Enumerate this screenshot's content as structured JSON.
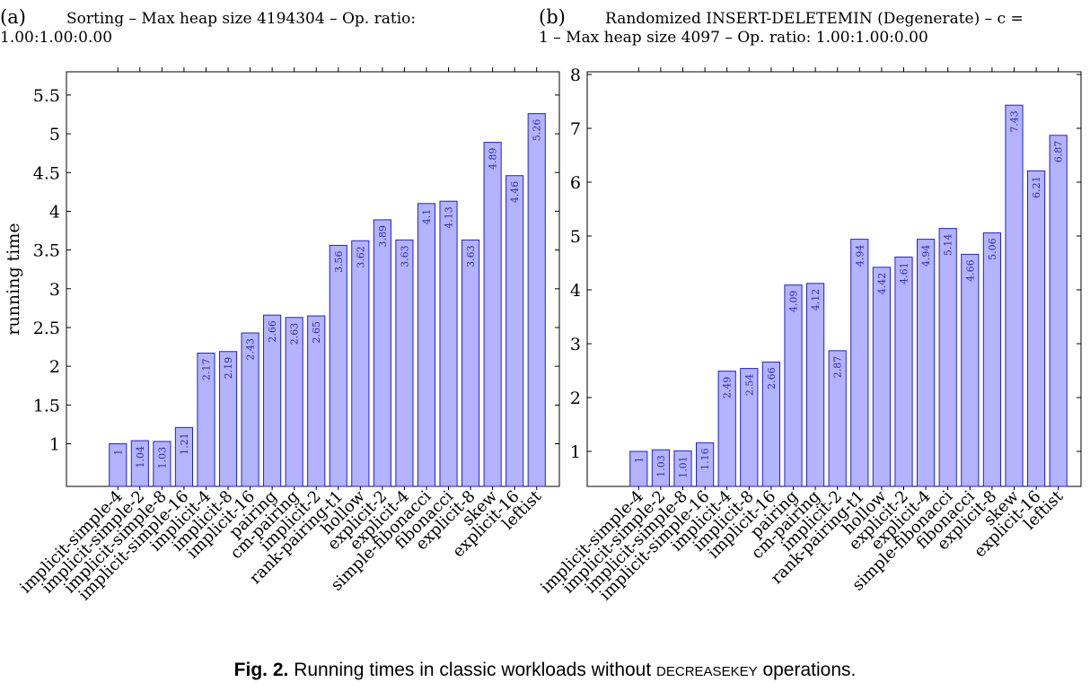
{
  "chart_data": [
    {
      "type": "bar",
      "panel": "(a)",
      "title": "Sorting – Max heap size 4194304 – Op.  ratio: 1.00:1.00:0.00",
      "title_lines": [
        "Sorting – Max heap size 4194304 – Op.  ratio:",
        "1.00:1.00:0.00"
      ],
      "ylabel": "running time",
      "xlabel": "",
      "ylim": [
        0.45,
        5.8
      ],
      "yticks": [
        "1",
        "1.5",
        "2",
        "2.5",
        "3",
        "3.5",
        "4",
        "4.5",
        "5",
        "5.5"
      ],
      "categories": [
        "implicit-simple-4",
        "implicit-simple-2",
        "implicit-simple-8",
        "implicit-simple-16",
        "implicit-4",
        "implicit-8",
        "implicit-16",
        "pairing",
        "cm-pairing",
        "implicit-2",
        "rank-pairing-t1",
        "hollow",
        "explicit-2",
        "explicit-4",
        "simple-fibonacci",
        "fibonacci",
        "explicit-8",
        "skew",
        "explicit-16",
        "leftist"
      ],
      "values": [
        1,
        1.04,
        1.03,
        1.21,
        2.17,
        2.19,
        2.43,
        2.66,
        2.63,
        2.65,
        3.56,
        3.62,
        3.89,
        3.63,
        4.1,
        4.13,
        3.63,
        4.89,
        4.46,
        5.26
      ],
      "value_labels": [
        "1",
        "1.04",
        "1.03",
        "1.21",
        "2.17",
        "2.19",
        "2.43",
        "2.66",
        "2.63",
        "2.65",
        "3.56",
        "3.62",
        "3.89",
        "3.63",
        "4.1",
        "4.13",
        "3.63",
        "4.89",
        "4.46",
        "5.26"
      ],
      "bar_color": "#b3b3ff",
      "bar_edge": "#2222cc",
      "grid": false
    },
    {
      "type": "bar",
      "panel": "(b)",
      "title": "Randomized INSERT-DELETEMIN (Degenerate) – c = 1 – Max heap size 4097 – Op. ratio: 1.00:1.00:0.00",
      "title_lines": [
        "Randomized INSERT-DELETEMIN (Degenerate) – c =",
        "1 – Max heap size 4097 – Op. ratio: 1.00:1.00:0.00"
      ],
      "ylabel": "",
      "xlabel": "",
      "ylim": [
        0.35,
        8.05
      ],
      "yticks": [
        "1",
        "2",
        "3",
        "4",
        "5",
        "6",
        "7",
        "8"
      ],
      "categories": [
        "implicit-simple-4",
        "implicit-simple-2",
        "implicit-simple-8",
        "implicit-simple-16",
        "implicit-4",
        "implicit-8",
        "implicit-16",
        "pairing",
        "cm-pairing",
        "implicit-2",
        "rank-pairing-t1",
        "hollow",
        "explicit-2",
        "explicit-4",
        "simple-fibonacci",
        "fibonacci",
        "explicit-8",
        "skew",
        "explicit-16",
        "leftist"
      ],
      "values": [
        1,
        1.03,
        1.01,
        1.16,
        2.49,
        2.54,
        2.66,
        4.09,
        4.12,
        2.87,
        4.94,
        4.42,
        4.61,
        4.94,
        5.14,
        4.66,
        5.06,
        7.43,
        6.21,
        6.87
      ],
      "value_labels": [
        "1",
        "1.03",
        "1.01",
        "1.16",
        "2.49",
        "2.54",
        "2.66",
        "4.09",
        "4.12",
        "2.87",
        "4.94",
        "4.42",
        "4.61",
        "4.94",
        "5.14",
        "4.66",
        "5.06",
        "7.43",
        "6.21",
        "6.87"
      ],
      "bar_color": "#b3b3ff",
      "bar_edge": "#2222cc",
      "grid": false
    }
  ],
  "caption": {
    "fig_label": "Fig. 2.",
    "text_before": "Running times in classic workloads without",
    "smallcaps": "decreasekey",
    "text_after": "operations."
  }
}
